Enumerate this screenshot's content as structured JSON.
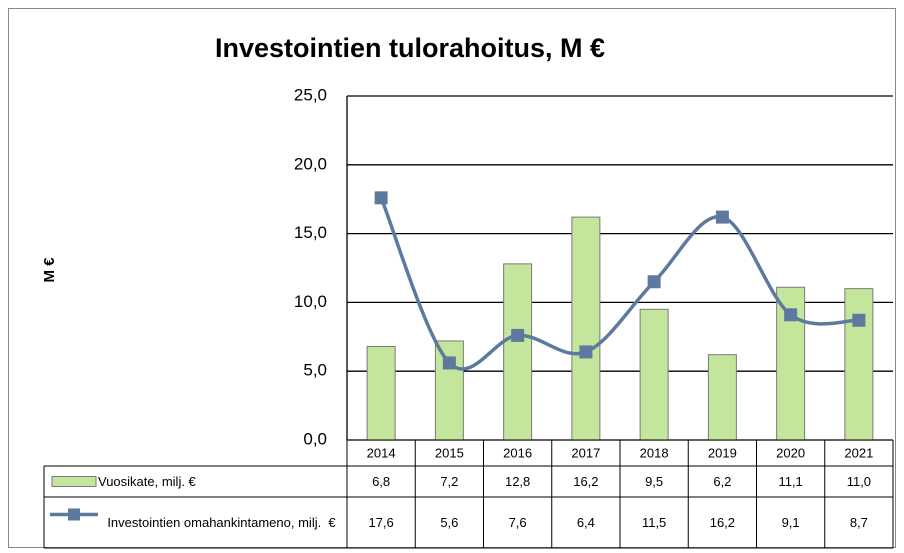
{
  "chart_data": {
    "type": "bar-line",
    "title": "Investointien tulorahoitus, M €",
    "y_label": "M €",
    "categories": [
      "2014",
      "2015",
      "2016",
      "2017",
      "2018",
      "2019",
      "2020",
      "2021"
    ],
    "series": [
      {
        "name": "Vuosikate, milj. €",
        "type": "bar",
        "color": "#c4e59c",
        "values": [
          6.8,
          7.2,
          12.8,
          16.2,
          9.5,
          6.2,
          11.1,
          11.0
        ],
        "value_labels": [
          "6,8",
          "7,2",
          "12,8",
          "16,2",
          "9,5",
          "6,2",
          "11,1",
          "11,0"
        ]
      },
      {
        "name": "Investointien omahankintameno, milj.  €",
        "type": "line",
        "color": "#5d7a9e",
        "smooth": true,
        "values": [
          17.6,
          5.6,
          7.6,
          6.4,
          11.5,
          16.2,
          9.1,
          8.7
        ],
        "value_labels": [
          "17,6",
          "5,6",
          "7,6",
          "6,4",
          "11,5",
          "16,2",
          "9,1",
          "8,7"
        ]
      }
    ],
    "ylim": [
      0,
      25
    ],
    "yticks": [
      {
        "value": 0,
        "label": "0,0"
      },
      {
        "value": 5,
        "label": "5,0"
      },
      {
        "value": 10,
        "label": "10,0"
      },
      {
        "value": 15,
        "label": "15,0"
      },
      {
        "value": 20,
        "label": "20,0"
      },
      {
        "value": 25,
        "label": "25,0"
      }
    ],
    "grid": true,
    "data_table": true
  }
}
